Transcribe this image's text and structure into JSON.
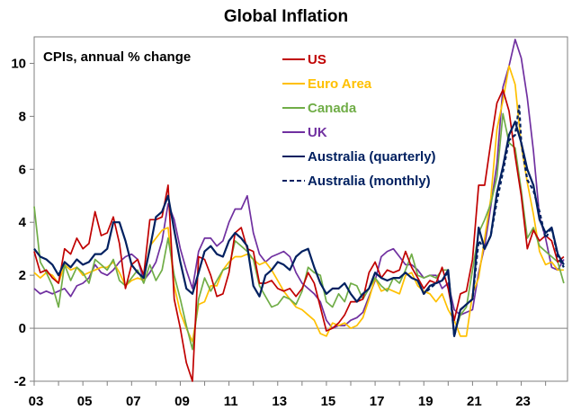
{
  "chart_data": {
    "type": "line",
    "title": "Global Inflation",
    "subtitle": "CPIs, annual % change",
    "xlabel": "",
    "ylabel": "",
    "xlim": [
      2003,
      2024.9
    ],
    "ylim": [
      -2,
      11
    ],
    "grid": false,
    "legend_position": "top-center",
    "y_ticks": [
      -2,
      0,
      2,
      4,
      6,
      8,
      10
    ],
    "y_tick_labels": [
      "-2",
      "0",
      "2",
      "4",
      "6",
      "8",
      "10"
    ],
    "x_ticks": [
      2003,
      2005,
      2007,
      2009,
      2011,
      2013,
      2015,
      2017,
      2019,
      2021,
      2023
    ],
    "x_tick_labels": [
      "03",
      "05",
      "07",
      "09",
      "11",
      "13",
      "15",
      "17",
      "19",
      "21",
      "23"
    ],
    "series": [
      {
        "name": "US",
        "color": "#C00000",
        "dash": false,
        "x": [
          2003.0,
          2003.25,
          2003.5,
          2003.75,
          2004.0,
          2004.25,
          2004.5,
          2004.75,
          2005.0,
          2005.25,
          2005.5,
          2005.75,
          2006.0,
          2006.25,
          2006.5,
          2006.75,
          2007.0,
          2007.25,
          2007.5,
          2007.75,
          2008.0,
          2008.25,
          2008.5,
          2008.75,
          2009.0,
          2009.25,
          2009.5,
          2009.75,
          2010.0,
          2010.25,
          2010.5,
          2010.75,
          2011.0,
          2011.25,
          2011.5,
          2011.75,
          2012.0,
          2012.25,
          2012.5,
          2012.75,
          2013.0,
          2013.25,
          2013.5,
          2013.75,
          2014.0,
          2014.25,
          2014.5,
          2014.75,
          2015.0,
          2015.25,
          2015.5,
          2015.75,
          2016.0,
          2016.25,
          2016.5,
          2016.75,
          2017.0,
          2017.25,
          2017.5,
          2017.75,
          2018.0,
          2018.25,
          2018.5,
          2018.75,
          2019.0,
          2019.25,
          2019.5,
          2019.75,
          2020.0,
          2020.25,
          2020.5,
          2020.75,
          2021.0,
          2021.25,
          2021.5,
          2021.75,
          2022.0,
          2022.25,
          2022.5,
          2022.75,
          2023.0,
          2023.25,
          2023.5,
          2023.75,
          2024.0,
          2024.25,
          2024.5,
          2024.75
        ],
        "y": [
          2.9,
          2.1,
          2.2,
          1.9,
          1.7,
          3.0,
          2.8,
          3.4,
          3.0,
          3.2,
          4.4,
          3.5,
          3.6,
          4.2,
          3.2,
          1.5,
          2.4,
          2.6,
          2.0,
          4.1,
          4.1,
          4.2,
          5.4,
          1.1,
          0.0,
          -1.3,
          -2.0,
          2.7,
          2.6,
          2.0,
          1.2,
          1.3,
          2.1,
          3.6,
          3.8,
          3.0,
          2.9,
          1.7,
          1.7,
          1.8,
          1.5,
          1.4,
          1.5,
          1.2,
          1.5,
          2.1,
          1.7,
          0.8,
          -0.1,
          0.0,
          0.2,
          0.5,
          1.0,
          1.0,
          1.1,
          2.1,
          2.5,
          1.9,
          2.2,
          2.1,
          2.2,
          2.9,
          2.3,
          1.9,
          1.5,
          1.8,
          1.7,
          2.3,
          1.5,
          0.3,
          1.3,
          1.4,
          2.6,
          5.4,
          5.4,
          7.0,
          8.5,
          9.0,
          8.2,
          6.5,
          5.0,
          3.0,
          3.7,
          3.3,
          3.5,
          3.3,
          2.5,
          2.7
        ]
      },
      {
        "name": "Euro Area",
        "color": "#FFC000",
        "dash": false,
        "x": [
          2003.0,
          2003.25,
          2003.5,
          2003.75,
          2004.0,
          2004.25,
          2004.5,
          2004.75,
          2005.0,
          2005.25,
          2005.5,
          2005.75,
          2006.0,
          2006.25,
          2006.5,
          2006.75,
          2007.0,
          2007.25,
          2007.5,
          2007.75,
          2008.0,
          2008.25,
          2008.5,
          2008.75,
          2009.0,
          2009.25,
          2009.5,
          2009.75,
          2010.0,
          2010.25,
          2010.5,
          2010.75,
          2011.0,
          2011.25,
          2011.5,
          2011.75,
          2012.0,
          2012.25,
          2012.5,
          2012.75,
          2013.0,
          2013.25,
          2013.5,
          2013.75,
          2014.0,
          2014.25,
          2014.5,
          2014.75,
          2015.0,
          2015.25,
          2015.5,
          2015.75,
          2016.0,
          2016.25,
          2016.5,
          2016.75,
          2017.0,
          2017.25,
          2017.5,
          2017.75,
          2018.0,
          2018.25,
          2018.5,
          2018.75,
          2019.0,
          2019.25,
          2019.5,
          2019.75,
          2020.0,
          2020.25,
          2020.5,
          2020.75,
          2021.0,
          2021.25,
          2021.5,
          2021.75,
          2022.0,
          2022.25,
          2022.5,
          2022.75,
          2023.0,
          2023.25,
          2023.5,
          2023.75,
          2024.0,
          2024.25,
          2024.5,
          2024.75
        ],
        "y": [
          2.1,
          1.9,
          2.1,
          2.0,
          1.7,
          2.4,
          2.2,
          2.3,
          2.0,
          2.1,
          2.2,
          2.3,
          2.3,
          2.5,
          2.1,
          1.6,
          1.8,
          1.9,
          1.8,
          3.1,
          3.4,
          3.7,
          3.8,
          1.6,
          0.6,
          0.0,
          -0.5,
          0.9,
          1.0,
          1.6,
          1.6,
          2.2,
          2.5,
          2.7,
          2.7,
          2.8,
          2.6,
          2.4,
          2.5,
          2.2,
          1.8,
          1.4,
          1.1,
          0.8,
          0.7,
          0.5,
          0.3,
          -0.2,
          -0.3,
          0.2,
          0.1,
          0.2,
          0.0,
          0.1,
          0.4,
          1.1,
          1.9,
          1.4,
          1.5,
          1.4,
          1.3,
          2.0,
          2.1,
          1.6,
          1.4,
          1.3,
          1.0,
          1.3,
          0.7,
          0.3,
          -0.3,
          -0.3,
          1.3,
          1.9,
          3.4,
          4.9,
          7.5,
          8.6,
          9.9,
          9.2,
          6.9,
          5.5,
          4.3,
          2.9,
          2.4,
          2.5,
          2.2,
          2.2
        ]
      },
      {
        "name": "Canada",
        "color": "#70AD47",
        "dash": false,
        "x": [
          2003.0,
          2003.25,
          2003.5,
          2003.75,
          2004.0,
          2004.25,
          2004.5,
          2004.75,
          2005.0,
          2005.25,
          2005.5,
          2005.75,
          2006.0,
          2006.25,
          2006.5,
          2006.75,
          2007.0,
          2007.25,
          2007.5,
          2007.75,
          2008.0,
          2008.25,
          2008.5,
          2008.75,
          2009.0,
          2009.25,
          2009.5,
          2009.75,
          2010.0,
          2010.25,
          2010.5,
          2010.75,
          2011.0,
          2011.25,
          2011.5,
          2011.75,
          2012.0,
          2012.25,
          2012.5,
          2012.75,
          2013.0,
          2013.25,
          2013.5,
          2013.75,
          2014.0,
          2014.25,
          2014.5,
          2014.75,
          2015.0,
          2015.25,
          2015.5,
          2015.75,
          2016.0,
          2016.25,
          2016.5,
          2016.75,
          2017.0,
          2017.25,
          2017.5,
          2017.75,
          2018.0,
          2018.25,
          2018.5,
          2018.75,
          2019.0,
          2019.25,
          2019.5,
          2019.75,
          2020.0,
          2020.25,
          2020.5,
          2020.75,
          2021.0,
          2021.25,
          2021.5,
          2021.75,
          2022.0,
          2022.25,
          2022.5,
          2022.75,
          2023.0,
          2023.25,
          2023.5,
          2023.75,
          2024.0,
          2024.25,
          2024.5,
          2024.75
        ],
        "y": [
          4.6,
          2.5,
          2.1,
          1.6,
          0.8,
          2.4,
          1.8,
          2.3,
          2.1,
          1.7,
          2.6,
          2.4,
          2.2,
          2.6,
          1.8,
          1.6,
          1.9,
          2.2,
          1.7,
          2.4,
          1.8,
          2.2,
          3.4,
          2.0,
          1.1,
          0.1,
          -0.8,
          1.1,
          1.9,
          1.4,
          1.8,
          2.2,
          2.3,
          3.3,
          3.1,
          2.9,
          2.6,
          1.6,
          1.2,
          0.8,
          0.9,
          1.2,
          1.1,
          0.9,
          1.4,
          2.3,
          2.1,
          2.0,
          1.0,
          0.8,
          1.3,
          1.0,
          1.7,
          1.6,
          1.1,
          1.5,
          1.9,
          1.6,
          1.4,
          1.9,
          1.7,
          2.2,
          2.8,
          2.0,
          1.9,
          2.0,
          1.9,
          2.2,
          2.2,
          -0.2,
          0.5,
          0.8,
          2.2,
          3.6,
          4.1,
          4.7,
          5.7,
          8.1,
          7.0,
          6.8,
          5.2,
          3.4,
          3.8,
          3.1,
          2.9,
          2.7,
          2.5,
          1.7
        ]
      },
      {
        "name": "UK",
        "color": "#7030A0",
        "dash": false,
        "x": [
          2003.0,
          2003.25,
          2003.5,
          2003.75,
          2004.0,
          2004.25,
          2004.5,
          2004.75,
          2005.0,
          2005.25,
          2005.5,
          2005.75,
          2006.0,
          2006.25,
          2006.5,
          2006.75,
          2007.0,
          2007.25,
          2007.5,
          2007.75,
          2008.0,
          2008.25,
          2008.5,
          2008.75,
          2009.0,
          2009.25,
          2009.5,
          2009.75,
          2010.0,
          2010.25,
          2010.5,
          2010.75,
          2011.0,
          2011.25,
          2011.5,
          2011.75,
          2012.0,
          2012.25,
          2012.5,
          2012.75,
          2013.0,
          2013.25,
          2013.5,
          2013.75,
          2014.0,
          2014.25,
          2014.5,
          2014.75,
          2015.0,
          2015.25,
          2015.5,
          2015.75,
          2016.0,
          2016.25,
          2016.5,
          2016.75,
          2017.0,
          2017.25,
          2017.5,
          2017.75,
          2018.0,
          2018.25,
          2018.5,
          2018.75,
          2019.0,
          2019.25,
          2019.5,
          2019.75,
          2020.0,
          2020.25,
          2020.5,
          2020.75,
          2021.0,
          2021.25,
          2021.5,
          2021.75,
          2022.0,
          2022.25,
          2022.5,
          2022.75,
          2023.0,
          2023.25,
          2023.5,
          2023.75,
          2024.0,
          2024.25,
          2024.5,
          2024.75
        ],
        "y": [
          1.5,
          1.3,
          1.4,
          1.3,
          1.4,
          1.5,
          1.2,
          1.6,
          1.7,
          1.9,
          2.4,
          2.1,
          2.0,
          2.2,
          2.5,
          2.7,
          2.8,
          2.6,
          1.8,
          2.1,
          2.5,
          3.3,
          4.7,
          4.1,
          3.0,
          2.2,
          1.5,
          2.9,
          3.4,
          3.4,
          3.1,
          3.3,
          4.0,
          4.5,
          4.5,
          5.0,
          3.6,
          2.8,
          2.5,
          2.7,
          2.8,
          2.9,
          2.7,
          2.1,
          1.7,
          1.5,
          1.3,
          1.0,
          0.3,
          0.0,
          0.1,
          0.1,
          0.3,
          0.4,
          0.6,
          1.2,
          1.8,
          2.7,
          2.9,
          3.0,
          2.7,
          2.4,
          2.4,
          2.2,
          1.9,
          2.0,
          2.0,
          1.5,
          1.7,
          0.7,
          0.5,
          0.6,
          0.7,
          2.1,
          3.1,
          4.6,
          6.2,
          9.1,
          9.9,
          10.9,
          10.2,
          8.7,
          6.7,
          4.2,
          3.4,
          2.3,
          2.2,
          2.6
        ]
      },
      {
        "name": "Australia (quarterly)",
        "color": "#002060",
        "dash": false,
        "x": [
          2003.0,
          2003.25,
          2003.5,
          2003.75,
          2004.0,
          2004.25,
          2004.5,
          2004.75,
          2005.0,
          2005.25,
          2005.5,
          2005.75,
          2006.0,
          2006.25,
          2006.5,
          2006.75,
          2007.0,
          2007.25,
          2007.5,
          2007.75,
          2008.0,
          2008.25,
          2008.5,
          2008.75,
          2009.0,
          2009.25,
          2009.5,
          2009.75,
          2010.0,
          2010.25,
          2010.5,
          2010.75,
          2011.0,
          2011.25,
          2011.5,
          2011.75,
          2012.0,
          2012.25,
          2012.5,
          2012.75,
          2013.0,
          2013.25,
          2013.5,
          2013.75,
          2014.0,
          2014.25,
          2014.5,
          2014.75,
          2015.0,
          2015.25,
          2015.5,
          2015.75,
          2016.0,
          2016.25,
          2016.5,
          2016.75,
          2017.0,
          2017.25,
          2017.5,
          2017.75,
          2018.0,
          2018.25,
          2018.5,
          2018.75,
          2019.0,
          2019.25,
          2019.5,
          2019.75,
          2020.0,
          2020.25,
          2020.5,
          2020.75,
          2021.0,
          2021.25,
          2021.5,
          2021.75,
          2022.0,
          2022.25,
          2022.5,
          2022.75,
          2023.0,
          2023.25,
          2023.5,
          2023.75,
          2024.0,
          2024.25,
          2024.5,
          2024.75
        ],
        "y": [
          3.0,
          2.7,
          2.6,
          2.4,
          2.0,
          2.5,
          2.3,
          2.6,
          2.4,
          2.5,
          2.8,
          2.8,
          3.0,
          4.0,
          4.0,
          3.3,
          2.4,
          2.1,
          1.9,
          3.0,
          4.2,
          4.4,
          5.0,
          3.7,
          2.5,
          1.5,
          1.3,
          2.1,
          2.9,
          3.1,
          2.8,
          2.7,
          3.3,
          3.6,
          3.4,
          3.1,
          1.6,
          1.2,
          2.0,
          2.2,
          2.5,
          2.4,
          2.2,
          2.7,
          2.9,
          3.0,
          2.3,
          1.7,
          1.3,
          1.5,
          1.5,
          1.7,
          1.3,
          1.0,
          1.3,
          1.5,
          2.1,
          1.9,
          1.8,
          1.9,
          1.9,
          2.1,
          1.9,
          1.8,
          1.3,
          1.6,
          1.7,
          1.8,
          2.2,
          -0.3,
          0.7,
          0.9,
          1.1,
          3.8,
          3.0,
          3.5,
          5.1,
          6.1,
          7.3,
          7.8,
          7.0,
          6.0,
          5.4,
          4.1,
          3.6,
          3.8,
          2.8,
          2.4
        ]
      },
      {
        "name": "Australia (monthly)",
        "color": "#002060",
        "dash": true,
        "x": [
          2018.75,
          2019.0,
          2019.25,
          2019.5,
          2019.75,
          2020.0,
          2020.25,
          2020.5,
          2020.75,
          2021.0,
          2021.25,
          2021.5,
          2021.75,
          2022.0,
          2022.25,
          2022.5,
          2022.75,
          2022.917,
          2023.0,
          2023.25,
          2023.5,
          2023.75,
          2024.0,
          2024.25,
          2024.5,
          2024.75
        ],
        "y": [
          1.8,
          1.3,
          1.5,
          1.7,
          1.8,
          2.1,
          -0.3,
          0.7,
          0.9,
          1.1,
          3.3,
          3.0,
          3.5,
          4.8,
          5.9,
          7.1,
          7.3,
          8.4,
          7.0,
          5.6,
          5.2,
          4.4,
          3.4,
          3.8,
          2.7,
          2.3
        ]
      }
    ]
  }
}
